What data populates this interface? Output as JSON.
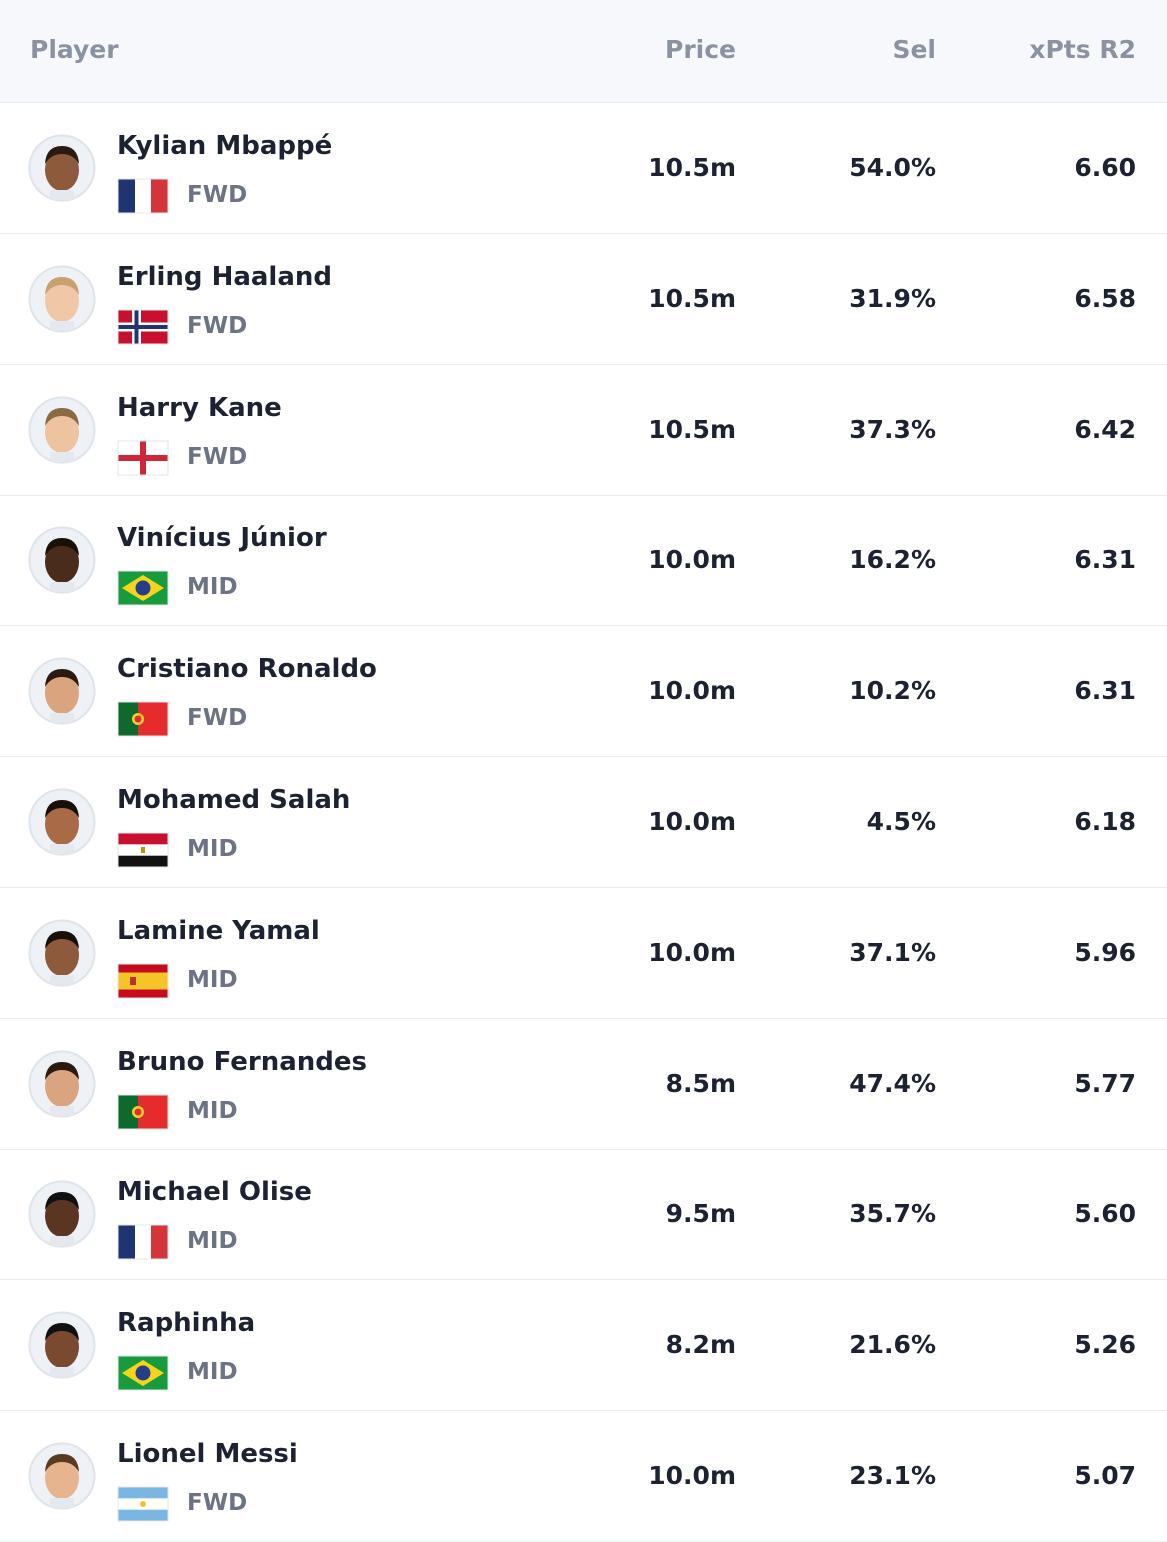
{
  "header": {
    "player": "Player",
    "price": "Price",
    "sel": "Sel",
    "xpts": "xPts R2"
  },
  "rows": [
    {
      "name": "Kylian Mbappé",
      "position": "FWD",
      "price": "10.5m",
      "sel": "54.0%",
      "xpts": "6.60"
    },
    {
      "name": "Erling Haaland",
      "position": "FWD",
      "price": "10.5m",
      "sel": "31.9%",
      "xpts": "6.58"
    },
    {
      "name": "Harry Kane",
      "position": "FWD",
      "price": "10.5m",
      "sel": "37.3%",
      "xpts": "6.42"
    },
    {
      "name": "Vinícius Júnior",
      "position": "MID",
      "price": "10.0m",
      "sel": "16.2%",
      "xpts": "6.31"
    },
    {
      "name": "Cristiano Ronaldo",
      "position": "FWD",
      "price": "10.0m",
      "sel": "10.2%",
      "xpts": "6.31"
    },
    {
      "name": "Mohamed Salah",
      "position": "MID",
      "price": "10.0m",
      "sel": "4.5%",
      "xpts": "6.18"
    },
    {
      "name": "Lamine Yamal",
      "position": "MID",
      "price": "10.0m",
      "sel": "37.1%",
      "xpts": "5.96"
    },
    {
      "name": "Bruno Fernandes",
      "position": "MID",
      "price": "8.5m",
      "sel": "47.4%",
      "xpts": "5.77"
    },
    {
      "name": "Michael Olise",
      "position": "MID",
      "price": "9.5m",
      "sel": "35.7%",
      "xpts": "5.60"
    },
    {
      "name": "Raphinha",
      "position": "MID",
      "price": "8.2m",
      "sel": "21.6%",
      "xpts": "5.26"
    },
    {
      "name": "Lionel Messi",
      "position": "FWD",
      "price": "10.0m",
      "sel": "23.1%",
      "xpts": "5.07"
    }
  ]
}
